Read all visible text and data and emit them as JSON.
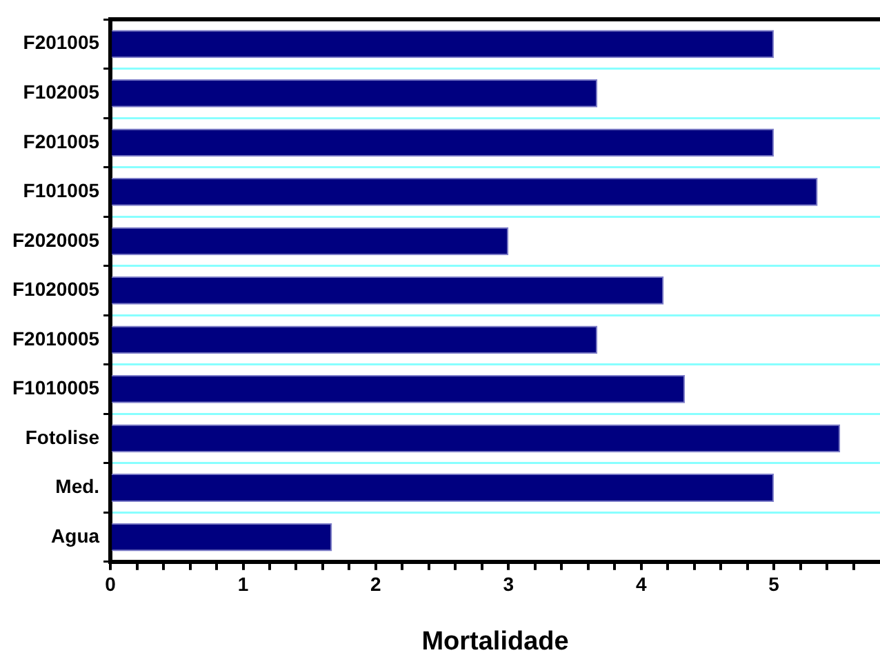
{
  "chart_data": {
    "type": "bar",
    "orientation": "horizontal",
    "xlabel": "Mortalidade",
    "categories": [
      "F201005",
      "F102005",
      "F201005",
      "F101005",
      "F2020005",
      "F1020005",
      "F2010005",
      "F1010005",
      "Fotolise",
      "Med.",
      "Agua"
    ],
    "values": [
      5,
      3.67,
      5,
      5.33,
      3,
      4.17,
      3.67,
      4.33,
      5.5,
      5,
      1.67
    ],
    "color": "#000080",
    "xlim": [
      0,
      5.8
    ],
    "xticks": [
      0,
      {
        "value": 0.2,
        "label": null
      },
      {
        "value": 0.4,
        "label": null
      },
      {
        "value": 0.6,
        "label": null
      },
      {
        "value": 0.8,
        "label": null
      },
      1,
      {
        "value": 1.2,
        "label": null
      },
      {
        "value": 1.4,
        "label": null
      },
      {
        "value": 1.6,
        "label": null
      },
      {
        "value": 1.8,
        "label": null
      },
      2,
      {
        "value": 2.2,
        "label": null
      },
      {
        "value": 2.4,
        "label": null
      },
      {
        "value": 2.6,
        "label": null
      },
      {
        "value": 2.8,
        "label": null
      },
      3,
      {
        "value": 3.2,
        "label": null
      },
      {
        "value": 3.4,
        "label": null
      },
      {
        "value": 3.6,
        "label": null
      },
      {
        "value": 3.8,
        "label": null
      },
      4,
      {
        "value": 4.2,
        "label": null
      },
      {
        "value": 4.4,
        "label": null
      },
      {
        "value": 4.6,
        "label": null
      },
      {
        "value": 4.8,
        "label": null
      },
      5,
      {
        "value": 5.2,
        "label": null
      },
      {
        "value": 5.4,
        "label": null
      },
      {
        "value": 5.6,
        "label": null
      }
    ],
    "grid": "y",
    "legend": false
  }
}
